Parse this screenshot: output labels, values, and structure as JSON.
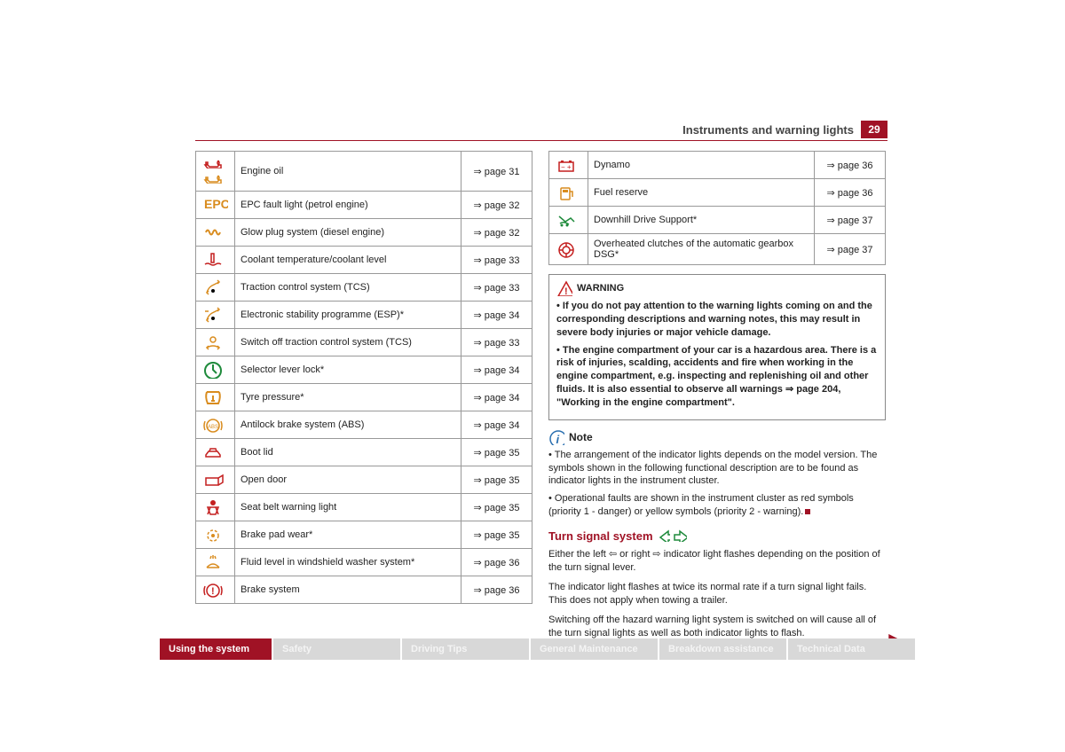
{
  "header": {
    "title": "Instruments and warning lights",
    "page_number": "29"
  },
  "colors": {
    "brand": "#a01225",
    "border": "#999",
    "icon_orange": "#d98c1e",
    "icon_red": "#c41f1f",
    "icon_green": "#1e8a3b",
    "tab_inactive_bg": "#d8d8d8"
  },
  "table_left": [
    {
      "icon": "oil-double",
      "color": "#d98c1e",
      "label": "Engine oil",
      "page": "⇒ page 31"
    },
    {
      "icon": "epc",
      "color": "#d98c1e",
      "label": "EPC fault light (petrol engine)",
      "page": "⇒ page 32"
    },
    {
      "icon": "glow",
      "color": "#d98c1e",
      "label": "Glow plug system (diesel engine)",
      "page": "⇒ page 32"
    },
    {
      "icon": "coolant",
      "color": "#c41f1f",
      "label": "Coolant temperature/coolant level",
      "page": "⇒ page 33"
    },
    {
      "icon": "tcs",
      "color": "#d98c1e",
      "label": "Traction control system (TCS)",
      "page": "⇒ page 33"
    },
    {
      "icon": "esp",
      "color": "#d98c1e",
      "label": "Electronic stability programme (ESP)*",
      "page": "⇒ page 34"
    },
    {
      "icon": "tcs-off",
      "color": "#d98c1e",
      "label": "Switch off traction control system (TCS)",
      "page": "⇒ page 33"
    },
    {
      "icon": "selector",
      "color": "#1e8a3b",
      "label": "Selector lever lock*",
      "page": "⇒ page 34"
    },
    {
      "icon": "tyre",
      "color": "#d98c1e",
      "label": "Tyre pressure*",
      "page": "⇒ page 34"
    },
    {
      "icon": "abs",
      "color": "#d98c1e",
      "label": "Antilock brake system (ABS)",
      "page": "⇒ page 34"
    },
    {
      "icon": "boot",
      "color": "#c41f1f",
      "label": "Boot lid",
      "page": "⇒ page 35"
    },
    {
      "icon": "door",
      "color": "#c41f1f",
      "label": "Open door",
      "page": "⇒ page 35"
    },
    {
      "icon": "seatbelt",
      "color": "#c41f1f",
      "label": "Seat belt warning light",
      "page": "⇒ page 35"
    },
    {
      "icon": "brakepad",
      "color": "#d98c1e",
      "label": "Brake pad wear*",
      "page": "⇒ page 35"
    },
    {
      "icon": "washer",
      "color": "#d98c1e",
      "label": "Fluid level in windshield washer system*",
      "page": "⇒ page 36"
    },
    {
      "icon": "brake",
      "color": "#c41f1f",
      "label": "Brake system",
      "page": "⇒ page 36"
    }
  ],
  "table_right": [
    {
      "icon": "battery",
      "color": "#c41f1f",
      "label": "Dynamo",
      "page": "⇒ page 36"
    },
    {
      "icon": "fuel",
      "color": "#d98c1e",
      "label": "Fuel reserve",
      "page": "⇒ page 36"
    },
    {
      "icon": "downhill",
      "color": "#1e8a3b",
      "label": "Downhill Drive Support*",
      "page": "⇒ page 37"
    },
    {
      "icon": "dsg",
      "color": "#c41f1f",
      "label": "Overheated clutches of the automatic gearbox DSG*",
      "page": "⇒ page 37"
    }
  ],
  "warning": {
    "title": "WARNING",
    "items": [
      "If you do not pay attention to the warning lights coming on and the corresponding descriptions and warning notes, this may result in severe body injuries or major vehicle damage.",
      "The engine compartment of your car is a hazardous area. There is a risk of injuries, scalding, accidents and fire when working in the engine compartment, e.g. inspecting and replenishing oil and other fluids. It is also essential to observe all warnings ⇒ page 204, \"Working in the engine compartment\"."
    ]
  },
  "note": {
    "title": "Note",
    "items": [
      "The arrangement of the indicator lights depends on the model version. The symbols shown in the following functional description are to be found as indicator lights in the instrument cluster.",
      "Operational faults are shown in the instrument cluster as red symbols (priority 1 - danger) or yellow symbols (priority 2 - warning)."
    ]
  },
  "section": {
    "title": "Turn signal system",
    "paragraphs": [
      "Either the left ⇦ or right ⇨ indicator light flashes depending on the position of the turn signal lever.",
      "The indicator light flashes at twice its normal rate if a turn signal light fails. This does not apply when towing a trailer.",
      "Switching off the hazard warning light system is switched on will cause all of the turn signal lights as well as both indicator lights to flash."
    ]
  },
  "footer_tabs": [
    {
      "label": "Using the system",
      "active": true
    },
    {
      "label": "Safety",
      "active": false
    },
    {
      "label": "Driving Tips",
      "active": false
    },
    {
      "label": "General Maintenance",
      "active": false
    },
    {
      "label": "Breakdown assistance",
      "active": false
    },
    {
      "label": "Technical Data",
      "active": false
    }
  ]
}
